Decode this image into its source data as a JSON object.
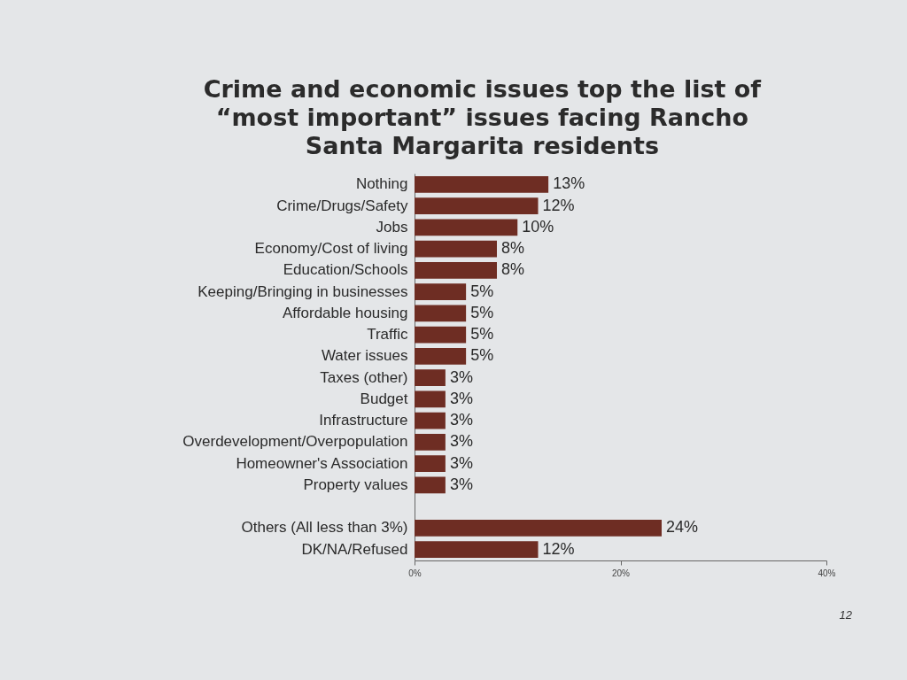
{
  "chart_data": {
    "type": "bar",
    "orientation": "horizontal",
    "title": "Crime and economic issues top the list of “most important” issues facing Rancho Santa Margarita residents",
    "categories": [
      "Nothing",
      "Crime/Drugs/Safety",
      "Jobs",
      "Economy/Cost of living",
      "Education/Schools",
      "Keeping/Bringing in businesses",
      "Affordable housing",
      "Traffic",
      "Water issues",
      "Taxes (other)",
      "Budget",
      "Infrastructure",
      "Overdevelopment/Overpopulation",
      "Homeowner's Association",
      "Property values",
      null,
      "Others (All less than 3%)",
      "DK/NA/Refused"
    ],
    "values": [
      13,
      12,
      10,
      8,
      8,
      5,
      5,
      5,
      5,
      3,
      3,
      3,
      3,
      3,
      3,
      null,
      24,
      12
    ],
    "value_labels": [
      "13%",
      "12%",
      "10%",
      "8%",
      "8%",
      "5%",
      "5%",
      "5%",
      "5%",
      "3%",
      "3%",
      "3%",
      "3%",
      "3%",
      "3%",
      null,
      "24%",
      "12%"
    ],
    "color": "#6e2d23",
    "xlim": [
      0,
      40
    ],
    "xticks": [
      {
        "value": 0,
        "label": "0%"
      },
      {
        "value": 20,
        "label": "20%"
      },
      {
        "value": 40,
        "label": "40%"
      }
    ],
    "annotations": [
      "12"
    ]
  }
}
